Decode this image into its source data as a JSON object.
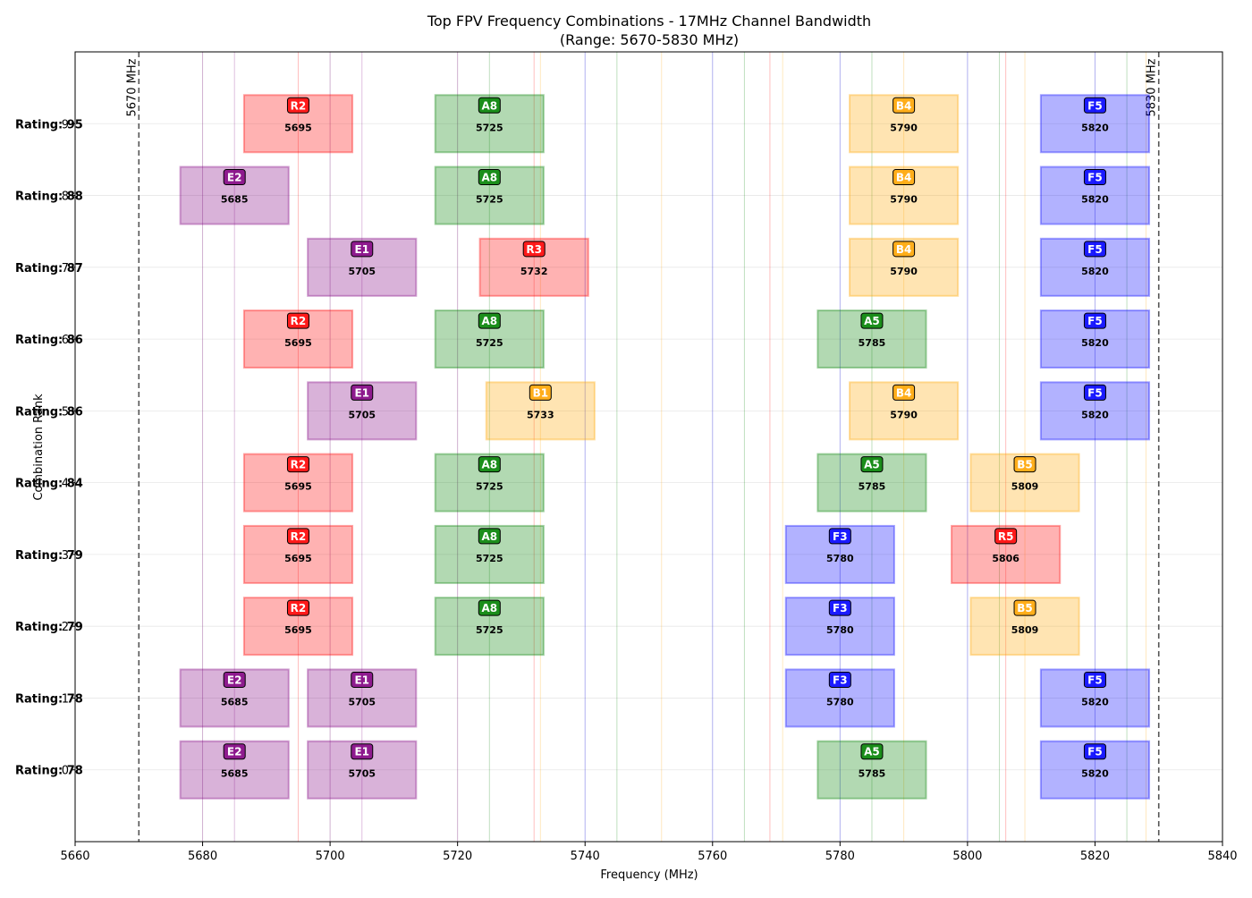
{
  "chart_data": {
    "type": "bar",
    "title": "Top FPV Frequency Combinations - 17MHz Channel Bandwidth",
    "subtitle": "(Range: 5670-5830 MHz)",
    "xlabel": "Frequency (MHz)",
    "ylabel": "Combination Rank",
    "xlim": [
      5660,
      5840
    ],
    "x_ticks": [
      5660,
      5680,
      5700,
      5720,
      5740,
      5760,
      5780,
      5800,
      5820,
      5840
    ],
    "x_tick_labels": [
      "5660",
      "5680",
      "5700",
      "5720",
      "5740",
      "5760",
      "5780",
      "5800",
      "5820",
      "5840"
    ],
    "y_ticks": [
      "9",
      "8",
      "7",
      "6",
      "5",
      "4",
      "3",
      "2",
      "1",
      "0"
    ],
    "channel_bandwidth": 17,
    "grid": true,
    "range_markers": [
      {
        "x": 5670,
        "label": "5670 MHz"
      },
      {
        "x": 5830,
        "label": "5830 MHz"
      }
    ],
    "band_colors": {
      "R": "#ff0000",
      "A": "#008000",
      "B": "#ffa500",
      "E": "#800080",
      "F": "#0000ff"
    },
    "reference_lines": [
      {
        "x": 5680,
        "band": "E"
      },
      {
        "x": 5685,
        "band": "E"
      },
      {
        "x": 5695,
        "band": "R"
      },
      {
        "x": 5700,
        "band": "E"
      },
      {
        "x": 5705,
        "band": "E"
      },
      {
        "x": 5720,
        "band": "E"
      },
      {
        "x": 5725,
        "band": "A"
      },
      {
        "x": 5732,
        "band": "R"
      },
      {
        "x": 5733,
        "band": "B"
      },
      {
        "x": 5740,
        "band": "F"
      },
      {
        "x": 5745,
        "band": "A"
      },
      {
        "x": 5752,
        "band": "B"
      },
      {
        "x": 5760,
        "band": "F"
      },
      {
        "x": 5765,
        "band": "A"
      },
      {
        "x": 5769,
        "band": "R"
      },
      {
        "x": 5771,
        "band": "B"
      },
      {
        "x": 5780,
        "band": "F"
      },
      {
        "x": 5785,
        "band": "A"
      },
      {
        "x": 5790,
        "band": "B"
      },
      {
        "x": 5800,
        "band": "F"
      },
      {
        "x": 5805,
        "band": "A"
      },
      {
        "x": 5806,
        "band": "R"
      },
      {
        "x": 5809,
        "band": "B"
      },
      {
        "x": 5820,
        "band": "F"
      },
      {
        "x": 5825,
        "band": "A"
      },
      {
        "x": 5828,
        "band": "B"
      }
    ],
    "combinations": [
      {
        "rating_label": "Rating: 95",
        "channels": [
          {
            "name": "R2",
            "band": "R",
            "freq": 5695
          },
          {
            "name": "A8",
            "band": "A",
            "freq": 5725
          },
          {
            "name": "B4",
            "band": "B",
            "freq": 5790
          },
          {
            "name": "F5",
            "band": "F",
            "freq": 5820
          }
        ]
      },
      {
        "rating_label": "Rating: 88",
        "channels": [
          {
            "name": "E2",
            "band": "E",
            "freq": 5685
          },
          {
            "name": "A8",
            "band": "A",
            "freq": 5725
          },
          {
            "name": "B4",
            "band": "B",
            "freq": 5790
          },
          {
            "name": "F5",
            "band": "F",
            "freq": 5820
          }
        ]
      },
      {
        "rating_label": "Rating: 87",
        "channels": [
          {
            "name": "E1",
            "band": "E",
            "freq": 5705
          },
          {
            "name": "R3",
            "band": "R",
            "freq": 5732
          },
          {
            "name": "B4",
            "band": "B",
            "freq": 5790
          },
          {
            "name": "F5",
            "band": "F",
            "freq": 5820
          }
        ]
      },
      {
        "rating_label": "Rating: 86",
        "channels": [
          {
            "name": "R2",
            "band": "R",
            "freq": 5695
          },
          {
            "name": "A8",
            "band": "A",
            "freq": 5725
          },
          {
            "name": "A5",
            "band": "A",
            "freq": 5785
          },
          {
            "name": "F5",
            "band": "F",
            "freq": 5820
          }
        ]
      },
      {
        "rating_label": "Rating: 86",
        "channels": [
          {
            "name": "E1",
            "band": "E",
            "freq": 5705
          },
          {
            "name": "B1",
            "band": "B",
            "freq": 5733
          },
          {
            "name": "B4",
            "band": "B",
            "freq": 5790
          },
          {
            "name": "F5",
            "band": "F",
            "freq": 5820
          }
        ]
      },
      {
        "rating_label": "Rating: 84",
        "channels": [
          {
            "name": "R2",
            "band": "R",
            "freq": 5695
          },
          {
            "name": "A8",
            "band": "A",
            "freq": 5725
          },
          {
            "name": "A5",
            "band": "A",
            "freq": 5785
          },
          {
            "name": "B5",
            "band": "B",
            "freq": 5809
          }
        ]
      },
      {
        "rating_label": "Rating: 79",
        "channels": [
          {
            "name": "R2",
            "band": "R",
            "freq": 5695
          },
          {
            "name": "A8",
            "band": "A",
            "freq": 5725
          },
          {
            "name": "F3",
            "band": "F",
            "freq": 5780
          },
          {
            "name": "R5",
            "band": "R",
            "freq": 5806
          }
        ]
      },
      {
        "rating_label": "Rating: 79",
        "channels": [
          {
            "name": "R2",
            "band": "R",
            "freq": 5695
          },
          {
            "name": "A8",
            "band": "A",
            "freq": 5725
          },
          {
            "name": "F3",
            "band": "F",
            "freq": 5780
          },
          {
            "name": "B5",
            "band": "B",
            "freq": 5809
          }
        ]
      },
      {
        "rating_label": "Rating: 78",
        "channels": [
          {
            "name": "E2",
            "band": "E",
            "freq": 5685
          },
          {
            "name": "E1",
            "band": "E",
            "freq": 5705
          },
          {
            "name": "F3",
            "band": "F",
            "freq": 5780
          },
          {
            "name": "F5",
            "band": "F",
            "freq": 5820
          }
        ]
      },
      {
        "rating_label": "Rating: 78",
        "channels": [
          {
            "name": "E2",
            "band": "E",
            "freq": 5685
          },
          {
            "name": "E1",
            "band": "E",
            "freq": 5705
          },
          {
            "name": "A5",
            "band": "A",
            "freq": 5785
          },
          {
            "name": "F5",
            "band": "F",
            "freq": 5820
          }
        ]
      }
    ]
  }
}
